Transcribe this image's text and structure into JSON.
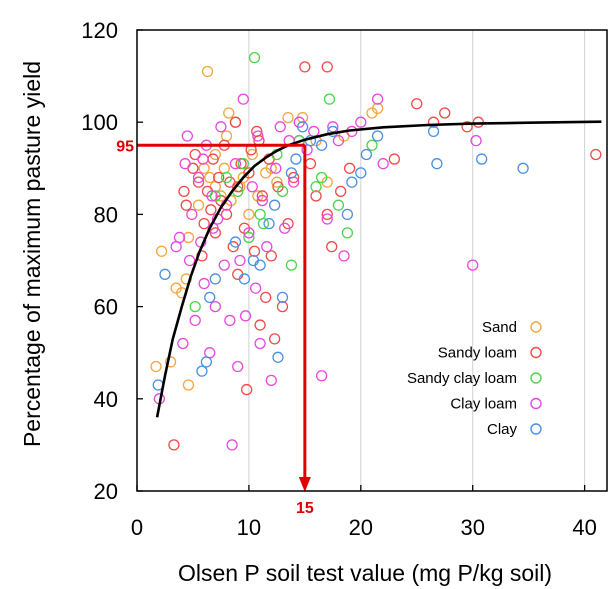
{
  "chart_data": {
    "type": "scatter",
    "xlabel": "Olsen P soil test value  (mg P/kg soil)",
    "ylabel": "Percentage of maximum pasture yield",
    "xlim": [
      0,
      42
    ],
    "ylim": [
      20,
      120
    ],
    "x_ticks": [
      0,
      10,
      20,
      30,
      40
    ],
    "y_ticks": [
      20,
      40,
      60,
      80,
      100,
      120
    ],
    "grid": "vertical",
    "legend_position": "right",
    "series": [
      {
        "name": "Sand",
        "color": "#f2a640",
        "points": [
          [
            1.7,
            47
          ],
          [
            2.2,
            72
          ],
          [
            3.0,
            48
          ],
          [
            3.5,
            64
          ],
          [
            4.0,
            63
          ],
          [
            4.4,
            66
          ],
          [
            4.6,
            43
          ],
          [
            4.6,
            75
          ],
          [
            5.5,
            82
          ],
          [
            6.3,
            111
          ],
          [
            6.0,
            90
          ],
          [
            7.0,
            93
          ],
          [
            7.0,
            86
          ],
          [
            7.5,
            84
          ],
          [
            8.0,
            97
          ],
          [
            8.2,
            102
          ],
          [
            8.4,
            83
          ],
          [
            8.8,
            100
          ],
          [
            9.2,
            86
          ],
          [
            10.0,
            80
          ],
          [
            10.3,
            93
          ],
          [
            11.5,
            89
          ],
          [
            12.0,
            90
          ],
          [
            13.5,
            101
          ],
          [
            14.8,
            101
          ],
          [
            16.0,
            96
          ],
          [
            17.0,
            87
          ],
          [
            18.5,
            97
          ],
          [
            21.0,
            102
          ],
          [
            21.5,
            103
          ],
          [
            10.8,
            84
          ],
          [
            9.5,
            88
          ],
          [
            7.8,
            90
          ],
          [
            6.5,
            88
          ],
          [
            12.5,
            87
          ]
        ]
      },
      {
        "name": "Sandy loam",
        "color": "#f04a4a",
        "points": [
          [
            3.3,
            30
          ],
          [
            4.2,
            85
          ],
          [
            4.4,
            82
          ],
          [
            5.0,
            90
          ],
          [
            5.2,
            93
          ],
          [
            5.5,
            87
          ],
          [
            5.8,
            71
          ],
          [
            6.0,
            78
          ],
          [
            6.3,
            85
          ],
          [
            6.6,
            81
          ],
          [
            6.8,
            92
          ],
          [
            7.0,
            76
          ],
          [
            7.3,
            88
          ],
          [
            7.5,
            83
          ],
          [
            7.8,
            95
          ],
          [
            8.0,
            80
          ],
          [
            8.3,
            87
          ],
          [
            8.6,
            73
          ],
          [
            8.8,
            100
          ],
          [
            9.0,
            67
          ],
          [
            9.3,
            91
          ],
          [
            9.6,
            77
          ],
          [
            9.8,
            42
          ],
          [
            10.0,
            89
          ],
          [
            10.2,
            94
          ],
          [
            10.5,
            72
          ],
          [
            10.7,
            98
          ],
          [
            11.0,
            56
          ],
          [
            11.2,
            84
          ],
          [
            11.5,
            62
          ],
          [
            11.8,
            92
          ],
          [
            12.0,
            71
          ],
          [
            12.3,
            53
          ],
          [
            12.6,
            86
          ],
          [
            13.0,
            60
          ],
          [
            13.5,
            78
          ],
          [
            14.0,
            88
          ],
          [
            14.5,
            96
          ],
          [
            15.0,
            112
          ],
          [
            15.5,
            91
          ],
          [
            16.0,
            84
          ],
          [
            17.0,
            112
          ],
          [
            17.0,
            80
          ],
          [
            17.4,
            73
          ],
          [
            18.2,
            85
          ],
          [
            19.0,
            90
          ],
          [
            23.0,
            92
          ],
          [
            25.0,
            104
          ],
          [
            26.5,
            100
          ],
          [
            27.5,
            102
          ],
          [
            29.5,
            99
          ],
          [
            30.5,
            100
          ],
          [
            41.0,
            93
          ],
          [
            9.0,
            86
          ],
          [
            10.9,
            96
          ]
        ]
      },
      {
        "name": "Sandy clay loam",
        "color": "#4cd44c",
        "points": [
          [
            5.2,
            60
          ],
          [
            7.0,
            84
          ],
          [
            8.0,
            88
          ],
          [
            9.0,
            85
          ],
          [
            9.5,
            91
          ],
          [
            10.5,
            114
          ],
          [
            11.3,
            78
          ],
          [
            12.5,
            93
          ],
          [
            13.0,
            85
          ],
          [
            13.8,
            69
          ],
          [
            14.5,
            96
          ],
          [
            16.0,
            86
          ],
          [
            16.5,
            88
          ],
          [
            17.2,
            105
          ],
          [
            18.0,
            82
          ],
          [
            18.8,
            76
          ],
          [
            21.0,
            95
          ],
          [
            11.0,
            80
          ],
          [
            10.0,
            75
          ]
        ]
      },
      {
        "name": "Clay loam",
        "color": "#e848e0",
        "points": [
          [
            2.0,
            40
          ],
          [
            3.5,
            73
          ],
          [
            3.8,
            75
          ],
          [
            4.1,
            52
          ],
          [
            4.3,
            91
          ],
          [
            4.5,
            97
          ],
          [
            4.7,
            70
          ],
          [
            4.9,
            80
          ],
          [
            5.2,
            57
          ],
          [
            5.5,
            88
          ],
          [
            5.7,
            74
          ],
          [
            6.0,
            65
          ],
          [
            6.2,
            95
          ],
          [
            6.5,
            50
          ],
          [
            6.7,
            84
          ],
          [
            7.0,
            60
          ],
          [
            7.2,
            79
          ],
          [
            7.5,
            99
          ],
          [
            7.8,
            69
          ],
          [
            8.0,
            82
          ],
          [
            8.3,
            57
          ],
          [
            8.5,
            30
          ],
          [
            8.8,
            91
          ],
          [
            9.0,
            47
          ],
          [
            9.2,
            70
          ],
          [
            9.5,
            105
          ],
          [
            9.7,
            58
          ],
          [
            10.0,
            76
          ],
          [
            10.3,
            86
          ],
          [
            10.6,
            64
          ],
          [
            10.8,
            97
          ],
          [
            11.0,
            52
          ],
          [
            11.2,
            83
          ],
          [
            11.6,
            73
          ],
          [
            12.0,
            44
          ],
          [
            12.4,
            90
          ],
          [
            12.8,
            99
          ],
          [
            13.2,
            77
          ],
          [
            13.6,
            96
          ],
          [
            14.0,
            87
          ],
          [
            14.5,
            100
          ],
          [
            15.2,
            94
          ],
          [
            15.8,
            98
          ],
          [
            16.5,
            45
          ],
          [
            17.0,
            79
          ],
          [
            17.5,
            99
          ],
          [
            18.0,
            96
          ],
          [
            18.5,
            71
          ],
          [
            19.2,
            98
          ],
          [
            20.0,
            100
          ],
          [
            21.5,
            105
          ],
          [
            22.0,
            91
          ],
          [
            30.0,
            69
          ],
          [
            30.3,
            96
          ],
          [
            6.8,
            77
          ],
          [
            5.9,
            92
          ]
        ]
      },
      {
        "name": "Clay",
        "color": "#4a90e0",
        "points": [
          [
            1.9,
            43
          ],
          [
            2.5,
            67
          ],
          [
            5.8,
            46
          ],
          [
            6.2,
            48
          ],
          [
            6.5,
            62
          ],
          [
            7.0,
            66
          ],
          [
            8.8,
            74
          ],
          [
            9.6,
            66
          ],
          [
            10.4,
            70
          ],
          [
            11.0,
            69
          ],
          [
            11.8,
            78
          ],
          [
            12.3,
            82
          ],
          [
            12.6,
            49
          ],
          [
            13.0,
            62
          ],
          [
            13.8,
            89
          ],
          [
            14.2,
            92
          ],
          [
            14.8,
            99
          ],
          [
            15.5,
            96
          ],
          [
            16.5,
            95
          ],
          [
            17.5,
            98
          ],
          [
            18.8,
            80
          ],
          [
            19.2,
            87
          ],
          [
            20.0,
            89
          ],
          [
            20.5,
            93
          ],
          [
            21.5,
            97
          ],
          [
            26.5,
            98
          ],
          [
            26.8,
            91
          ],
          [
            30.8,
            92
          ],
          [
            34.5,
            90
          ]
        ]
      }
    ],
    "fitted_curve": {
      "color": "#000000",
      "points": [
        [
          1.8,
          36
        ],
        [
          2.5,
          45
        ],
        [
          3.2,
          53
        ],
        [
          4.0,
          60
        ],
        [
          4.8,
          66.5
        ],
        [
          5.6,
          72
        ],
        [
          6.5,
          77
        ],
        [
          7.5,
          81.5
        ],
        [
          8.5,
          85
        ],
        [
          9.5,
          88
        ],
        [
          10.5,
          90.5
        ],
        [
          11.5,
          92.3
        ],
        [
          12.5,
          93.8
        ],
        [
          13.5,
          95
        ],
        [
          15.0,
          96.2
        ],
        [
          17.0,
          97.4
        ],
        [
          19.0,
          98.2
        ],
        [
          22.0,
          98.9
        ],
        [
          26.0,
          99.4
        ],
        [
          30.0,
          99.7
        ],
        [
          35.0,
          99.9
        ],
        [
          41.5,
          100.1
        ]
      ]
    },
    "reference": {
      "x_value": 15,
      "y_value": 95,
      "x_label": "15",
      "y_label": "95",
      "color": "#e00000"
    }
  }
}
